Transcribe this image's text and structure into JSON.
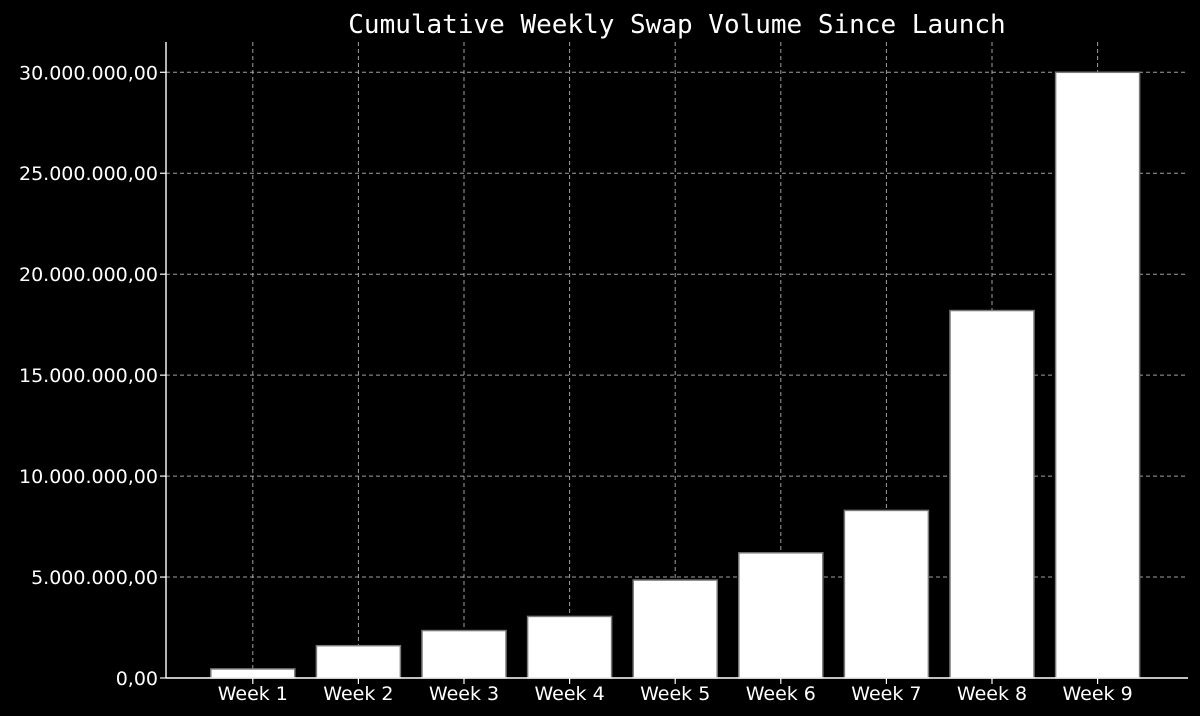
{
  "chart_data": {
    "type": "bar",
    "title": "Cumulative Weekly Swap Volume Since Launch",
    "xlabel": "",
    "ylabel": "",
    "categories": [
      "Week 1",
      "Week 2",
      "Week 3",
      "Week 4",
      "Week 5",
      "Week 6",
      "Week 7",
      "Week 8",
      "Week 9"
    ],
    "values": [
      450000,
      1600000,
      2350000,
      3050000,
      4850000,
      6200000,
      8300000,
      18200000,
      30000000
    ],
    "ylim": [
      0,
      31500000
    ],
    "yticks": [
      0,
      5000000,
      10000000,
      15000000,
      20000000,
      25000000,
      30000000
    ],
    "ytick_labels": [
      "0,00",
      "5.000.000,00",
      "10.000.000,00",
      "15.000.000,00",
      "20.000.000,00",
      "25.000.000,00",
      "30.000.000,00"
    ],
    "grid": true,
    "legend": "none",
    "colors": {
      "background": "#000000",
      "bar_fill": "#ffffff",
      "bar_edge": "#7a7a7a",
      "grid": "#bdbdbd",
      "text": "#ffffff"
    }
  }
}
